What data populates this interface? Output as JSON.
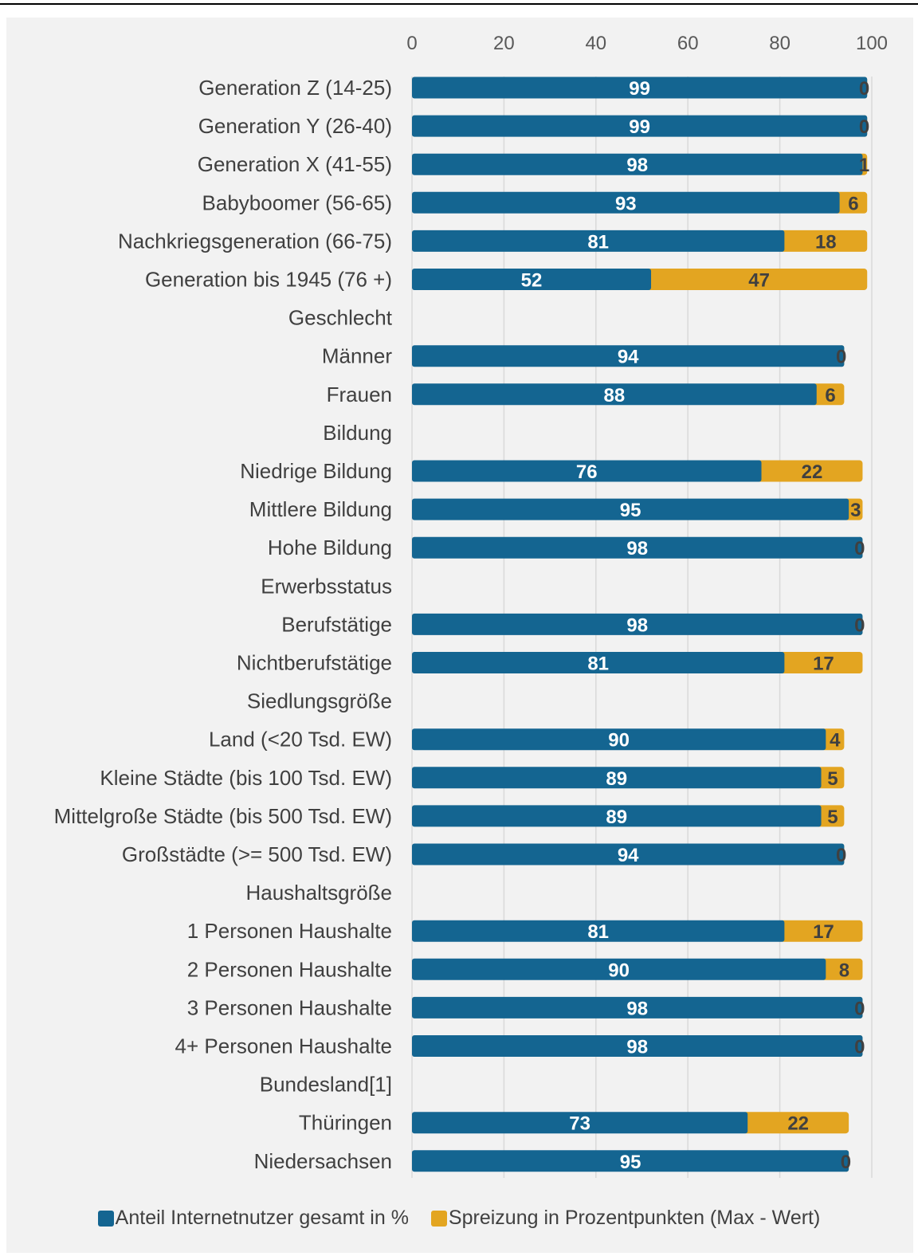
{
  "colors": {
    "series1": "#146591",
    "series2": "#E3A521",
    "grid": "#d9d9d9",
    "background": "#f2f2f2"
  },
  "chart_data": {
    "type": "bar",
    "orientation": "horizontal",
    "stacked": true,
    "xlim": [
      0,
      100
    ],
    "xticks": [
      0,
      20,
      40,
      60,
      80,
      100
    ],
    "x_axis_position": "top",
    "grid": true,
    "legend_position": "bottom",
    "categories": [
      "Generation Z (14-25)",
      "Generation Y (26-40)",
      "Generation X (41-55)",
      "Babyboomer (56-65)",
      "Nachkriegsgeneration (66-75)",
      "Generation bis 1945 (76 +)",
      "Geschlecht",
      "Männer ",
      "Frauen",
      "Bildung",
      "Niedrige Bildung",
      "Mittlere Bildung",
      "Hohe Bildung",
      "Erwerbsstatus",
      "Berufstätige",
      "Nichtberufstätige",
      "Siedlungsgröße",
      "Land (<20 Tsd. EW)",
      "Kleine Städte (bis 100 Tsd. EW)",
      "Mittelgroße Städte (bis 500 Tsd. EW) ",
      "Großstädte (>= 500 Tsd. EW)",
      "Haushaltsgröße",
      "1 Personen Haushalte",
      "2 Personen Haushalte",
      "3 Personen Haushalte",
      "4+ Personen Haushalte",
      "Bundesland[1]",
      "Thüringen",
      "Niedersachsen"
    ],
    "series": [
      {
        "name": "Anteil Internetnutzer gesamt in %",
        "values": [
          99,
          99,
          98,
          93,
          81,
          52,
          null,
          94,
          88,
          null,
          76,
          95,
          98,
          null,
          98,
          81,
          null,
          90,
          89,
          89,
          94,
          null,
          81,
          90,
          98,
          98,
          null,
          73,
          95
        ]
      },
      {
        "name": "Spreizung in Prozentpunkten (Max - Wert)",
        "values": [
          0,
          0,
          1,
          6,
          18,
          47,
          null,
          0,
          6,
          null,
          22,
          3,
          0,
          null,
          0,
          17,
          null,
          4,
          5,
          5,
          0,
          null,
          17,
          8,
          0,
          0,
          null,
          22,
          0
        ]
      }
    ]
  }
}
